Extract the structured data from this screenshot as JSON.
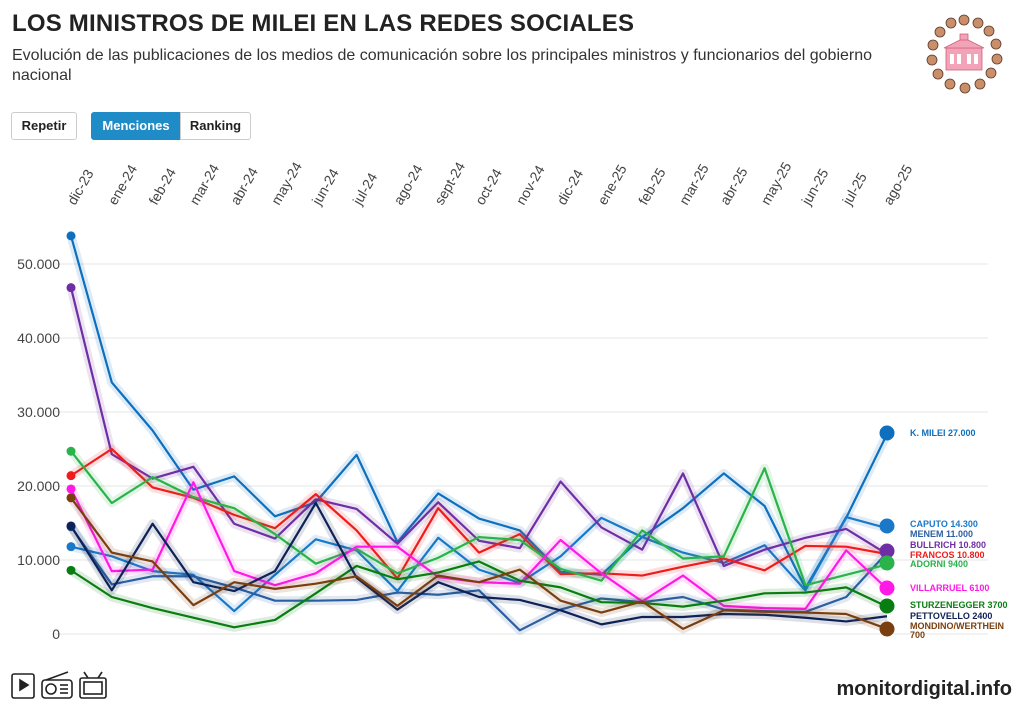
{
  "header": {
    "title": "LOS MINISTROS DE MILEI EN LAS REDES SOCIALES",
    "subtitle": "Evolución de las publicaciones de los medios de comunicación sobre los principales ministros y funcionarios del gobierno nacional"
  },
  "controls": {
    "repeat_label": "Repetir",
    "mentions_label": "Menciones",
    "ranking_label": "Ranking"
  },
  "footer": {
    "brand": "monitordigital.info"
  },
  "icons": [
    "tablet-icon",
    "radio-icon",
    "tv-icon",
    "logo-ministers-icon"
  ],
  "chart_data": {
    "type": "line",
    "title": "LOS MINISTROS DE MILEI EN LAS REDES SOCIALES",
    "xlabel": "",
    "ylabel": "",
    "ylim": [
      0,
      55000
    ],
    "yticks": [
      0,
      10000,
      20000,
      30000,
      40000,
      50000
    ],
    "ytick_labels": [
      "0",
      "10.000",
      "20.000",
      "30.000",
      "40.000",
      "50.000"
    ],
    "grid": true,
    "categories": [
      "dic-23",
      "ene-24",
      "feb-24",
      "mar-24",
      "abr-24",
      "may-24",
      "jun-24",
      "jul-24",
      "ago-24",
      "sept-24",
      "oct-24",
      "nov-24",
      "dic-24",
      "ene-25",
      "feb-25",
      "mar-25",
      "abr-25",
      "may-25",
      "jun-25",
      "jul-25",
      "ago-25"
    ],
    "series": [
      {
        "name": "K. MILEI",
        "label": "K. MILEI 27.000",
        "color": "#0d6fbd",
        "values": [
          53800,
          34000,
          27500,
          19500,
          21300,
          15900,
          17800,
          24200,
          12400,
          19000,
          15600,
          14000,
          8400,
          8000,
          13100,
          17000,
          21700,
          17300,
          6200,
          15700,
          27000
        ]
      },
      {
        "name": "CAPUTO",
        "label": "CAPUTO 14.300",
        "color": "#1a78c8",
        "values": [
          11800,
          10500,
          8500,
          8000,
          3100,
          8000,
          12800,
          11300,
          5800,
          13000,
          8700,
          6900,
          10500,
          15700,
          13100,
          11000,
          9600,
          12000,
          5900,
          15800,
          14300
        ]
      },
      {
        "name": "MENEM",
        "label": "MENEM 11.000",
        "color": "#2c5fa0",
        "values": [
          14500,
          6700,
          7800,
          7800,
          6300,
          4500,
          4500,
          4600,
          5600,
          5300,
          5900,
          500,
          3300,
          4800,
          4300,
          5000,
          3300,
          3100,
          3000,
          5000,
          11000
        ]
      },
      {
        "name": "BULLRICH",
        "label": "BULLRICH 10.800",
        "color": "#6e2fa6",
        "values": [
          46800,
          24300,
          21000,
          22600,
          14900,
          12900,
          18200,
          16900,
          12200,
          17800,
          12600,
          11600,
          20600,
          14400,
          11400,
          21700,
          9200,
          11400,
          13000,
          14200,
          10800
        ]
      },
      {
        "name": "FRANCOS",
        "label": "FRANCOS 10.800",
        "color": "#ee1c1c",
        "values": [
          21400,
          25000,
          19800,
          18400,
          16100,
          14300,
          18900,
          14000,
          7500,
          17000,
          11000,
          13500,
          8100,
          8200,
          7900,
          9100,
          10200,
          8600,
          11900,
          11800,
          10800
        ]
      },
      {
        "name": "ADORNI",
        "label": "ADORNI 9400",
        "color": "#2ab34a",
        "values": [
          24700,
          17700,
          21200,
          18500,
          17000,
          13500,
          9500,
          11500,
          8200,
          10300,
          13100,
          12700,
          8800,
          7200,
          14000,
          10200,
          10500,
          22400,
          6600,
          8000,
          9400
        ]
      },
      {
        "name": "VILLARRUEL",
        "label": "VILLARRUEL 6100",
        "color": "#ff19e6",
        "values": [
          19600,
          8500,
          8700,
          20500,
          8500,
          6600,
          8200,
          11800,
          11800,
          7700,
          7000,
          6800,
          12700,
          8200,
          4400,
          7900,
          3800,
          3500,
          3400,
          11300,
          6100
        ]
      },
      {
        "name": "STURZENEGGER",
        "label": "STURZENEGGER 3700",
        "color": "#0a7d12",
        "values": [
          8600,
          5000,
          3500,
          2200,
          900,
          1900,
          5500,
          9200,
          7400,
          8300,
          9800,
          7200,
          6300,
          4300,
          4200,
          3700,
          4500,
          5500,
          5600,
          6300,
          3700
        ]
      },
      {
        "name": "PETTOVELLO",
        "label": "PETTOVELLO 2400",
        "color": "#0f2257",
        "values": [
          14600,
          5900,
          14900,
          7000,
          5800,
          8500,
          17700,
          7600,
          3300,
          7000,
          5000,
          4600,
          3200,
          1300,
          2300,
          2300,
          2700,
          2600,
          2200,
          1700,
          2400
        ]
      },
      {
        "name": "MONDINO/WERTHEIN",
        "label": "MONDINO/WERTHEIN 700",
        "color": "#7a3f10",
        "values": [
          18400,
          11000,
          9800,
          3900,
          7000,
          6100,
          6800,
          7800,
          3800,
          7900,
          7000,
          8700,
          4500,
          2900,
          4400,
          700,
          3200,
          3000,
          2900,
          2700,
          700
        ]
      }
    ]
  }
}
